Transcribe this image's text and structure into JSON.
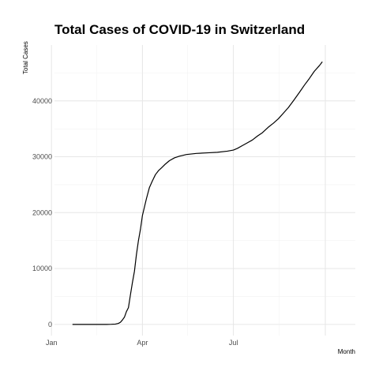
{
  "chart_data": {
    "type": "line",
    "title": "Total Cases of COVID-19 in Switzerland",
    "xlabel": "Month",
    "ylabel": "Total Cases",
    "x_ticks": [
      "Jan",
      "Apr",
      "Jul"
    ],
    "y_ticks": [
      "0",
      "10000",
      "20000",
      "30000",
      "40000"
    ],
    "ylim": [
      -2000,
      50000
    ],
    "xlim": [
      "2020-01-04",
      "2020-10-31"
    ],
    "grid": true,
    "legend": "none",
    "line_color": "#000000",
    "series": [
      {
        "x": [
          "2020-01-22",
          "2020-02-01",
          "2020-02-15",
          "2020-02-25",
          "2020-03-01",
          "2020-03-05",
          "2020-03-08",
          "2020-03-10",
          "2020-03-12",
          "2020-03-14",
          "2020-03-16",
          "2020-03-18",
          "2020-03-20",
          "2020-03-22",
          "2020-03-24",
          "2020-03-26",
          "2020-03-28",
          "2020-03-30",
          "2020-04-01",
          "2020-04-03",
          "2020-04-05",
          "2020-04-08",
          "2020-04-11",
          "2020-04-14",
          "2020-04-17",
          "2020-04-20",
          "2020-04-24",
          "2020-04-28",
          "2020-05-03",
          "2020-05-08",
          "2020-05-15",
          "2020-05-25",
          "2020-06-05",
          "2020-06-15",
          "2020-06-25",
          "2020-07-01",
          "2020-07-05",
          "2020-07-10",
          "2020-07-15",
          "2020-07-20",
          "2020-07-25",
          "2020-07-30",
          "2020-08-05",
          "2020-08-10",
          "2020-08-15",
          "2020-08-20",
          "2020-08-25",
          "2020-08-30",
          "2020-09-05",
          "2020-09-10",
          "2020-09-15",
          "2020-09-20",
          "2020-09-25",
          "2020-09-28"
        ],
        "y": [
          0,
          0,
          0,
          0,
          20,
          60,
          180,
          380,
          800,
          1300,
          2300,
          3000,
          5300,
          7500,
          9500,
          12500,
          15000,
          17000,
          19500,
          21000,
          22500,
          24500,
          25700,
          26800,
          27500,
          28000,
          28700,
          29300,
          29800,
          30100,
          30400,
          30600,
          30700,
          30800,
          31000,
          31200,
          31500,
          32000,
          32500,
          33000,
          33700,
          34300,
          35300,
          36000,
          36800,
          37800,
          38800,
          40000,
          41500,
          42800,
          44000,
          45300,
          46300,
          47000
        ]
      }
    ]
  }
}
